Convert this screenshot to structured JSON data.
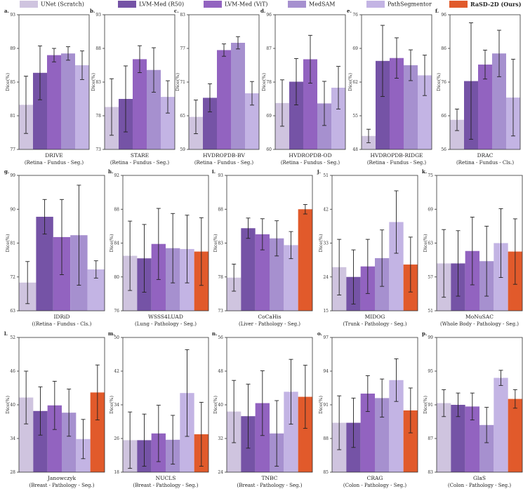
{
  "legend": [
    {
      "name": "UNet (Scratch)",
      "color": "#cfc4df"
    },
    {
      "name": "LVM-Med (R50)",
      "color": "#7553a6"
    },
    {
      "name": "LVM-Med (ViT)",
      "color": "#9263c0"
    },
    {
      "name": "MedSAM",
      "color": "#a690cf"
    },
    {
      "name": "PathSegmentor",
      "color": "#c3b4e4"
    },
    {
      "name": "RaSD-2D (Ours)",
      "color": "#e15a2b"
    }
  ],
  "chart_data": [
    {
      "type": "bar",
      "panel": "a.",
      "title": "DRIVE",
      "subtitle": "(Retina - Fundus - Seg.)",
      "ylabel": "Dice(%)",
      "ylim": [
        77,
        93
      ],
      "yticks": [
        77,
        81,
        85,
        89,
        93
      ],
      "values": [
        82.3,
        86.1,
        88.2,
        88.4,
        87.0
      ],
      "errors": [
        3.4,
        3.2,
        0.8,
        0.8,
        1.7
      ]
    },
    {
      "type": "bar",
      "panel": "b.",
      "title": "STARE",
      "subtitle": "(Retina - Fundus - Seg.)",
      "ylabel": "Dice(%)",
      "ylim": [
        73,
        93
      ],
      "yticks": [
        73,
        78,
        83,
        88,
        93
      ],
      "values": [
        79.3,
        80.5,
        86.4,
        84.8,
        80.8
      ],
      "errors": [
        4.2,
        4.9,
        2.0,
        3.3,
        2.4
      ]
    },
    {
      "type": "bar",
      "panel": "c.",
      "title": "HVDROPDB-BV",
      "subtitle": "(Retina - Fundus - Seg.)",
      "ylabel": "Dice(%)",
      "ylim": [
        59,
        83
      ],
      "yticks": [
        59,
        65,
        71,
        77,
        83
      ],
      "values": [
        64.8,
        68.2,
        76.7,
        78.0,
        69.0
      ],
      "errors": [
        3.0,
        2.5,
        1.1,
        1.1,
        2.1
      ]
    },
    {
      "type": "bar",
      "panel": "d.",
      "title": "HVDROPDB-OD",
      "subtitle": "(Retina - Fundus - Seg.)",
      "ylabel": "Dice(%)",
      "ylim": [
        60,
        96
      ],
      "yticks": [
        60,
        69,
        78,
        87,
        96
      ],
      "values": [
        72.4,
        78.1,
        84.1,
        72.3,
        76.5
      ],
      "errors": [
        6.2,
        6.2,
        6.4,
        5.9,
        5.7
      ]
    },
    {
      "type": "bar",
      "panel": "e.",
      "title": "HVDROPDB-RIDGE",
      "subtitle": "(Retina - Fundus - Seg.)",
      "ylabel": "Dice(%)",
      "ylim": [
        48,
        76
      ],
      "yticks": [
        48,
        55,
        62,
        69,
        76
      ],
      "values": [
        50.8,
        66.4,
        67.0,
        65.5,
        63.4
      ],
      "errors": [
        1.4,
        7.4,
        4.2,
        3.2,
        4.2
      ]
    },
    {
      "type": "bar",
      "panel": "f.",
      "title": "DRAC",
      "subtitle": "(Retina - Fundus - Cls.)",
      "ylabel": "Dice(%)",
      "ylim": [
        56,
        96
      ],
      "yticks": [
        56,
        66,
        76,
        86,
        96
      ],
      "values": [
        64.8,
        76.3,
        81.2,
        84.5,
        71.4
      ],
      "errors": [
        3.2,
        17.3,
        4.3,
        6.9,
        11.4
      ]
    },
    {
      "type": "bar",
      "panel": "g.",
      "title": "IDRiD",
      "subtitle": "((Retina - Fundus - Cls.)",
      "ylabel": "Dice(%)",
      "ylim": [
        63,
        99
      ],
      "yticks": [
        63,
        72,
        81,
        90,
        99
      ],
      "values": [
        70.5,
        88.0,
        82.6,
        83.1,
        74.0
      ],
      "errors": [
        5.6,
        4.6,
        10.0,
        13.3,
        2.3
      ]
    },
    {
      "type": "bar",
      "panel": "h.",
      "title": "WSSS4LUAD",
      "subtitle": "(Lung - Pathology - Seg.)",
      "ylabel": "Dice(%)",
      "ylim": [
        76,
        92
      ],
      "yticks": [
        76,
        80,
        84,
        88,
        92
      ],
      "values": [
        82.5,
        82.2,
        83.9,
        83.4,
        83.3,
        83.0
      ],
      "errors": [
        4.1,
        4.0,
        4.2,
        4.1,
        4.0,
        4.0
      ]
    },
    {
      "type": "bar",
      "panel": "i.",
      "title": "CoCaHis",
      "subtitle": "(Liver - Pathology - Seg.)",
      "ylabel": "Dice(%)",
      "ylim": [
        73,
        93
      ],
      "yticks": [
        73,
        78,
        83,
        88,
        93
      ],
      "values": [
        77.9,
        85.2,
        84.3,
        83.7,
        82.7,
        88.0
      ],
      "errors": [
        2.0,
        1.5,
        2.3,
        2.6,
        2.0,
        0.7
      ]
    },
    {
      "type": "bar",
      "panel": "j.",
      "title": "MIDOG",
      "subtitle": "(Trunk - Pathology - Seg.)",
      "ylabel": "Dice(%)",
      "ylim": [
        15,
        51
      ],
      "yticks": [
        15,
        24,
        33,
        42,
        51
      ],
      "values": [
        26.6,
        24.0,
        26.8,
        29.0,
        38.6,
        27.3
      ],
      "errors": [
        7.4,
        7.2,
        7.2,
        7.5,
        8.3,
        7.3
      ]
    },
    {
      "type": "bar",
      "panel": "k.",
      "title": "MoNuSAC",
      "subtitle": "(Whole Body - Pathology - Seg.)",
      "ylabel": "Dice(%)",
      "ylim": [
        51,
        75
      ],
      "yticks": [
        51,
        57,
        63,
        69,
        75
      ],
      "values": [
        59.4,
        59.4,
        61.6,
        59.8,
        63.0,
        61.5
      ],
      "errors": [
        6.0,
        5.8,
        6.0,
        6.2,
        6.1,
        5.8
      ]
    },
    {
      "type": "bar",
      "panel": "l.",
      "title": "Janowczyk",
      "subtitle": "(Breast - Pathology - Seg.)",
      "ylabel": "Dice(%)",
      "ylim": [
        28,
        52
      ],
      "yticks": [
        28,
        34,
        40,
        46,
        52
      ],
      "values": [
        41.3,
        38.9,
        39.9,
        38.6,
        33.9,
        42.2
      ],
      "errors": [
        4.7,
        4.3,
        4.3,
        4.2,
        3.5,
        4.9
      ]
    },
    {
      "type": "bar",
      "panel": "m.",
      "title": "NUCLS",
      "subtitle": "(Breast - Pathology - Seg.)",
      "ylabel": "Dice(%)",
      "ylim": [
        18,
        50
      ],
      "yticks": [
        18,
        26,
        34,
        42,
        50
      ],
      "values": [
        25.6,
        25.6,
        27.2,
        25.7,
        36.8,
        27.0
      ],
      "errors": [
        6.7,
        6.2,
        6.7,
        5.8,
        10.3,
        7.6
      ]
    },
    {
      "type": "bar",
      "panel": "n.",
      "title": "TNBC",
      "subtitle": "(Breast - Pathology - Seg.)",
      "ylabel": "Dice(%)",
      "ylim": [
        24,
        56
      ],
      "yticks": [
        24,
        32,
        40,
        48,
        56
      ],
      "values": [
        38.4,
        37.3,
        40.4,
        33.2,
        43.1,
        41.9
      ],
      "errors": [
        7.4,
        7.6,
        7.7,
        7.8,
        7.7,
        7.5
      ]
    },
    {
      "type": "bar",
      "panel": "o.",
      "title": "CRAG",
      "subtitle": "(Colon - Pathology - Seg.)",
      "ylabel": "Dice(%)",
      "ylim": [
        85,
        97
      ],
      "yticks": [
        85,
        88,
        91,
        94,
        97
      ],
      "values": [
        89.4,
        89.4,
        92.0,
        91.6,
        93.2,
        90.5
      ],
      "errors": [
        2.4,
        2.2,
        1.6,
        1.7,
        1.9,
        2.0
      ]
    },
    {
      "type": "bar",
      "panel": "p.",
      "title": "GlaS",
      "subtitle": "(Colon - Pathology - Seg.)",
      "ylabel": "Dice(%)",
      "ylim": [
        83,
        99
      ],
      "yticks": [
        83,
        87,
        91,
        95,
        99
      ],
      "values": [
        91.2,
        91.0,
        90.8,
        88.6,
        94.2,
        91.7
      ],
      "errors": [
        1.6,
        1.4,
        1.6,
        2.1,
        0.9,
        1.1
      ]
    }
  ]
}
